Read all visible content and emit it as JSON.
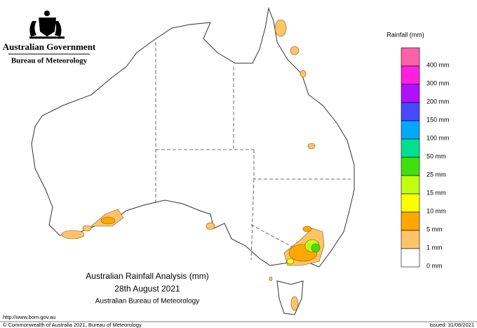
{
  "header": {
    "agency": "Australian Government",
    "bureau": "Bureau of Meteorology"
  },
  "title": {
    "line1": "Australian Rainfall Analysis (mm)",
    "line2": "28th August 2021",
    "line3": "Australian Bureau of Meteorology"
  },
  "legend": {
    "title": "Rainfall (mm)",
    "items": [
      {
        "color": "#ff60a8",
        "label": "400 mm"
      },
      {
        "color": "#ff20e0",
        "label": "300 mm"
      },
      {
        "color": "#b010ff",
        "label": "200 mm"
      },
      {
        "color": "#4848ff",
        "label": "150 mm"
      },
      {
        "color": "#00a8ff",
        "label": "100 mm"
      },
      {
        "color": "#00e090",
        "label": "50 mm"
      },
      {
        "color": "#40e010",
        "label": "25 mm"
      },
      {
        "color": "#c0ff10",
        "label": "15 mm"
      },
      {
        "color": "#ffff00",
        "label": "10 mm"
      },
      {
        "color": "#ffa800",
        "label": "5 mm"
      },
      {
        "color": "#ffc468",
        "label": "1 mm"
      },
      {
        "color": "#ffffff",
        "label": "0 mm"
      }
    ]
  },
  "footer": {
    "url": "http://www.bom.gov.au",
    "copyright": "© Commonwealth of Australia 2021, Bureau of Meteorology",
    "issued": "Issued: 31/08/2021"
  }
}
